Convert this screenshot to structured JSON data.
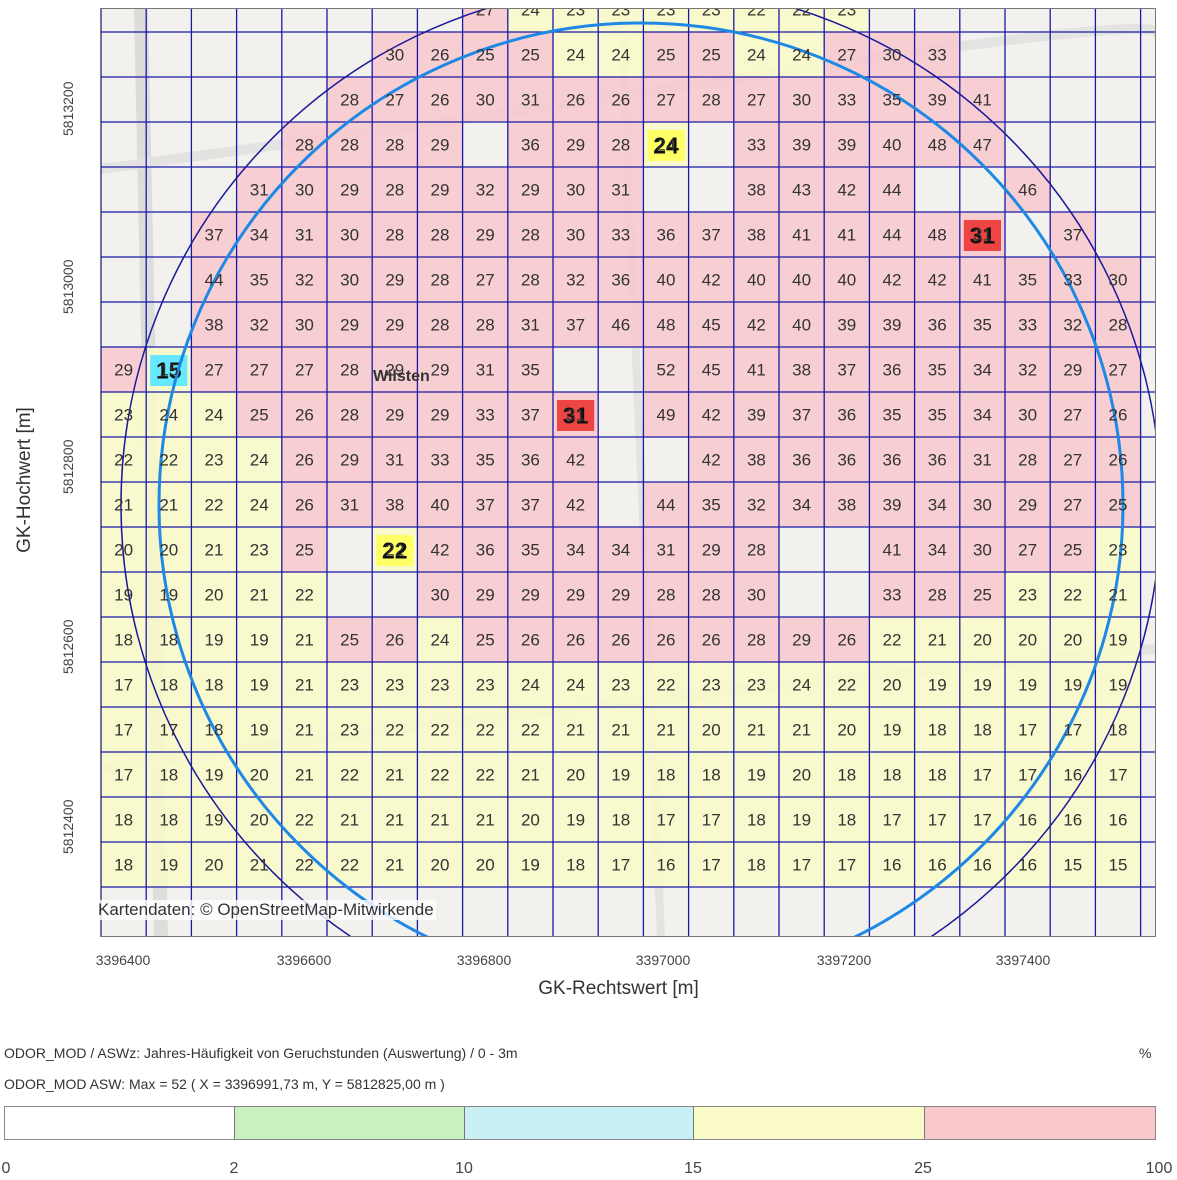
{
  "axes": {
    "x_label": "GK-Rechtswert [m]",
    "y_label": "GK-Hochwert [m]",
    "x_ticks": [
      "3396400",
      "3396600",
      "3396800",
      "3397000",
      "3397200",
      "3397400"
    ],
    "y_ticks": [
      "5813200",
      "5813000",
      "5812800",
      "5812600",
      "5812400"
    ]
  },
  "map": {
    "attribution": "Kartendaten: © OpenStreetMap-Mitwirkende",
    "place_label": "Wilsten",
    "grid_rows": [
      [
        null,
        null,
        null,
        null,
        null,
        null,
        null,
        null,
        27,
        24,
        23,
        23,
        23,
        23,
        22,
        22,
        23,
        null,
        null,
        null,
        null,
        null,
        null
      ],
      [
        null,
        null,
        null,
        null,
        null,
        null,
        30,
        26,
        25,
        25,
        24,
        24,
        25,
        25,
        24,
        24,
        27,
        30,
        33,
        null,
        null,
        null,
        null
      ],
      [
        null,
        null,
        null,
        null,
        null,
        28,
        27,
        26,
        30,
        31,
        26,
        26,
        27,
        28,
        27,
        30,
        33,
        35,
        39,
        41,
        null,
        null,
        null
      ],
      [
        null,
        null,
        null,
        null,
        28,
        28,
        28,
        29,
        null,
        36,
        29,
        28,
        24,
        null,
        33,
        39,
        39,
        40,
        48,
        47,
        null,
        null,
        null
      ],
      [
        null,
        null,
        null,
        31,
        30,
        29,
        28,
        29,
        32,
        29,
        30,
        31,
        null,
        null,
        38,
        43,
        42,
        44,
        null,
        null,
        46,
        null,
        null
      ],
      [
        null,
        null,
        37,
        34,
        31,
        30,
        28,
        28,
        29,
        28,
        30,
        33,
        36,
        37,
        38,
        41,
        41,
        44,
        48,
        31,
        null,
        37,
        null
      ],
      [
        null,
        null,
        44,
        35,
        32,
        30,
        29,
        28,
        27,
        28,
        32,
        36,
        40,
        42,
        40,
        40,
        40,
        42,
        42,
        41,
        35,
        33,
        30
      ],
      [
        null,
        null,
        38,
        32,
        30,
        29,
        29,
        28,
        28,
        31,
        37,
        46,
        48,
        45,
        42,
        40,
        39,
        39,
        36,
        35,
        33,
        32,
        28
      ],
      [
        29,
        15,
        27,
        27,
        27,
        28,
        29,
        29,
        31,
        35,
        null,
        null,
        52,
        45,
        41,
        38,
        37,
        36,
        35,
        34,
        32,
        29,
        27
      ],
      [
        23,
        24,
        24,
        25,
        26,
        28,
        29,
        29,
        33,
        37,
        31,
        null,
        49,
        42,
        39,
        37,
        36,
        35,
        35,
        34,
        30,
        27,
        26
      ],
      [
        22,
        22,
        23,
        24,
        26,
        29,
        31,
        33,
        35,
        36,
        42,
        null,
        null,
        42,
        38,
        36,
        36,
        36,
        36,
        31,
        28,
        27,
        26
      ],
      [
        21,
        21,
        22,
        24,
        26,
        31,
        38,
        40,
        37,
        37,
        42,
        null,
        44,
        35,
        32,
        34,
        38,
        39,
        34,
        30,
        29,
        27,
        25
      ],
      [
        20,
        20,
        21,
        23,
        25,
        null,
        22,
        42,
        36,
        35,
        34,
        34,
        31,
        29,
        28,
        null,
        null,
        41,
        34,
        30,
        27,
        25,
        23
      ],
      [
        19,
        19,
        20,
        21,
        22,
        null,
        null,
        30,
        29,
        29,
        29,
        29,
        28,
        28,
        30,
        null,
        null,
        33,
        28,
        25,
        23,
        22,
        21
      ],
      [
        18,
        18,
        19,
        19,
        21,
        25,
        26,
        24,
        25,
        26,
        26,
        26,
        26,
        26,
        28,
        29,
        26,
        22,
        21,
        20,
        20,
        20,
        19
      ],
      [
        17,
        18,
        18,
        19,
        21,
        23,
        23,
        23,
        23,
        24,
        24,
        23,
        22,
        23,
        23,
        24,
        22,
        20,
        19,
        19,
        19,
        19,
        19
      ],
      [
        17,
        17,
        18,
        19,
        21,
        23,
        22,
        22,
        22,
        22,
        21,
        21,
        21,
        20,
        21,
        21,
        20,
        19,
        18,
        18,
        17,
        17,
        18
      ],
      [
        17,
        18,
        19,
        20,
        21,
        22,
        21,
        22,
        22,
        21,
        20,
        19,
        18,
        18,
        19,
        20,
        18,
        18,
        18,
        17,
        17,
        16,
        17
      ],
      [
        18,
        18,
        19,
        20,
        22,
        21,
        21,
        21,
        21,
        20,
        19,
        18,
        17,
        17,
        18,
        19,
        18,
        17,
        17,
        17,
        16,
        16,
        16
      ],
      [
        18,
        19,
        20,
        21,
        22,
        22,
        21,
        20,
        20,
        19,
        18,
        17,
        16,
        17,
        18,
        17,
        17,
        16,
        16,
        16,
        16,
        15,
        15
      ]
    ],
    "highlight_cells": [
      {
        "row": 3,
        "col": 12,
        "value": "24",
        "color": "#ffff66"
      },
      {
        "row": 5,
        "col": 19,
        "value": "31",
        "color": "#ee4444"
      },
      {
        "row": 8,
        "col": 1,
        "value": "15",
        "color": "#66e8ff"
      },
      {
        "row": 9,
        "col": 10,
        "value": "31",
        "color": "#ee4444"
      },
      {
        "row": 12,
        "col": 6,
        "value": "22",
        "color": "#ffff66"
      }
    ]
  },
  "legend": {
    "title": "ODOR_MOD / ASWz: Jahres-Häufigkeit von Geruchstunden (Auswertung) / 0 - 3m",
    "max_line": "ODOR_MOD ASW: Max = 52    ( X = 3396991,73 m,  Y = 5812825,00 m )",
    "unit": "%",
    "breaks": [
      "0",
      "2",
      "10",
      "15",
      "25",
      "100"
    ],
    "colors": [
      "#ffffff",
      "#c8f0c0",
      "#c8f0f4",
      "#fafac8",
      "#f8c8cc"
    ]
  },
  "colors": {
    "grid_line": "#1a1aa8",
    "circle_outer": "#1e88e5",
    "circle_inner": "#1a1a9a"
  }
}
